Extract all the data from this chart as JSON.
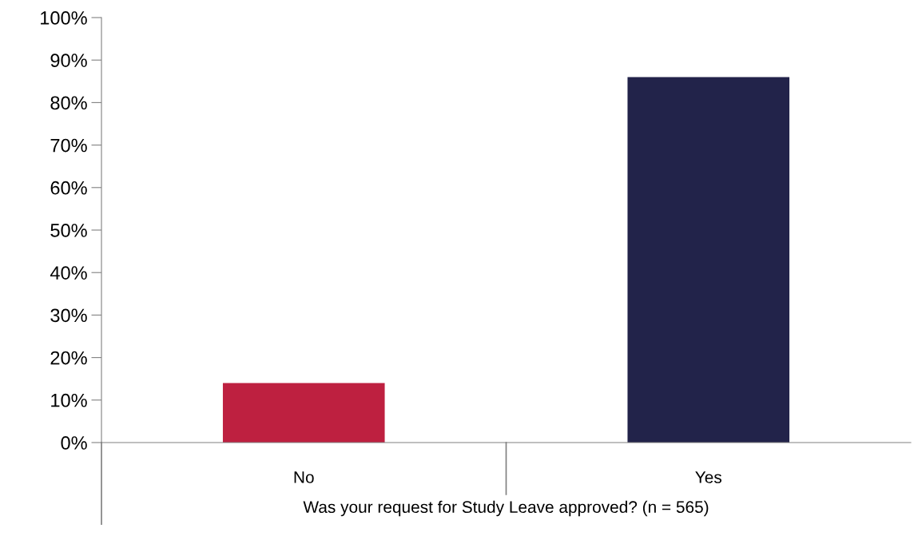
{
  "chart_data": {
    "type": "bar",
    "xlabel": "Was your request for Study Leave approved? (n = 565)",
    "categories": [
      "No",
      "Yes"
    ],
    "values": [
      14,
      86
    ],
    "colors": [
      "#be2040",
      "#22234a"
    ],
    "ylim": [
      0,
      100
    ],
    "yticks": [
      {
        "value": 0,
        "label": "0%"
      },
      {
        "value": 10,
        "label": "10%"
      },
      {
        "value": 20,
        "label": "20%"
      },
      {
        "value": 30,
        "label": "30%"
      },
      {
        "value": 40,
        "label": "40%"
      },
      {
        "value": 50,
        "label": "50%"
      },
      {
        "value": 60,
        "label": "60%"
      },
      {
        "value": 70,
        "label": "70%"
      },
      {
        "value": 80,
        "label": "80%"
      },
      {
        "value": 90,
        "label": "90%"
      },
      {
        "value": 100,
        "label": "100%"
      }
    ],
    "grid": false,
    "legend": false
  }
}
